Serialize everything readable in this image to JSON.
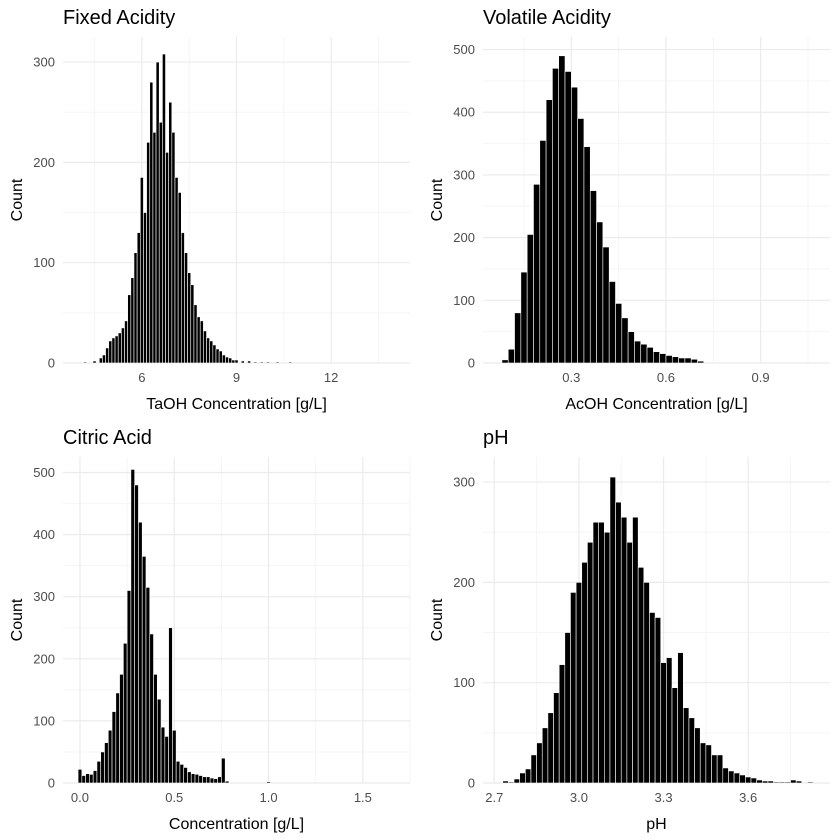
{
  "colors": {
    "bar_fill": "#000000",
    "bar_edge": "#ffffff",
    "grid_major": "#ebebeb",
    "grid_minor": "#f5f5f5",
    "tick_text": "#4d4d4d"
  },
  "chart_data": [
    {
      "type": "bar",
      "title": "Fixed Acidity",
      "xlabel": "TaOH Concentration [g/L]",
      "ylabel": "Count",
      "xlim": [
        3.5,
        14.5
      ],
      "ylim": [
        0,
        325
      ],
      "xticks": [
        6,
        9,
        12
      ],
      "yticks": [
        0,
        100,
        200,
        300
      ],
      "grid": true,
      "bin_width": 0.1,
      "x": [
        4.2,
        4.5,
        4.7,
        4.8,
        4.9,
        5.0,
        5.1,
        5.2,
        5.3,
        5.4,
        5.5,
        5.6,
        5.7,
        5.8,
        5.9,
        6.0,
        6.1,
        6.2,
        6.3,
        6.4,
        6.5,
        6.6,
        6.7,
        6.8,
        6.9,
        7.0,
        7.1,
        7.2,
        7.3,
        7.4,
        7.5,
        7.6,
        7.7,
        7.8,
        7.9,
        8.0,
        8.1,
        8.2,
        8.3,
        8.4,
        8.5,
        8.6,
        8.7,
        8.8,
        8.9,
        9.0,
        9.2,
        9.4,
        9.6,
        9.8,
        10.0,
        10.3,
        10.7
      ],
      "y": [
        1,
        2,
        5,
        8,
        15,
        22,
        25,
        27,
        30,
        35,
        42,
        68,
        85,
        110,
        130,
        185,
        150,
        220,
        280,
        230,
        300,
        240,
        308,
        210,
        260,
        230,
        185,
        170,
        130,
        110,
        90,
        78,
        58,
        46,
        42,
        32,
        25,
        22,
        18,
        14,
        12,
        8,
        6,
        5,
        3,
        3,
        2,
        2,
        1,
        1,
        1,
        1,
        1
      ]
    },
    {
      "type": "bar",
      "title": "Volatile Acidity",
      "xlabel": "AcOH Concentration [g/L]",
      "ylabel": "Count",
      "xlim": [
        0.02,
        1.12
      ],
      "ylim": [
        0,
        520
      ],
      "xticks": [
        0.3,
        0.6,
        0.9
      ],
      "yticks": [
        0,
        100,
        200,
        300,
        400,
        500
      ],
      "grid": true,
      "bin_width": 0.02,
      "x": [
        0.09,
        0.11,
        0.13,
        0.15,
        0.17,
        0.19,
        0.21,
        0.23,
        0.25,
        0.27,
        0.29,
        0.31,
        0.33,
        0.35,
        0.37,
        0.39,
        0.41,
        0.43,
        0.45,
        0.47,
        0.49,
        0.51,
        0.53,
        0.55,
        0.57,
        0.59,
        0.61,
        0.63,
        0.65,
        0.67,
        0.69,
        0.71
      ],
      "y": [
        5,
        22,
        80,
        145,
        205,
        285,
        355,
        420,
        470,
        490,
        465,
        440,
        390,
        345,
        275,
        225,
        185,
        130,
        95,
        72,
        50,
        35,
        30,
        25,
        18,
        15,
        12,
        10,
        8,
        8,
        6,
        3
      ]
    },
    {
      "type": "bar",
      "title": "Citric Acid",
      "xlabel": "Concentration [g/L]",
      "ylabel": "Count",
      "xlim": [
        -0.09,
        1.75
      ],
      "ylim": [
        0,
        525
      ],
      "xticks": [
        0.0,
        0.5,
        1.0,
        1.5
      ],
      "xticklabels": [
        "0.0",
        "0.5",
        "1.0",
        "1.5"
      ],
      "yticks": [
        0,
        100,
        200,
        300,
        400,
        500
      ],
      "grid": true,
      "bin_width": 0.02,
      "x": [
        0.0,
        0.02,
        0.04,
        0.06,
        0.08,
        0.1,
        0.12,
        0.14,
        0.16,
        0.18,
        0.2,
        0.22,
        0.24,
        0.26,
        0.28,
        0.3,
        0.32,
        0.34,
        0.36,
        0.38,
        0.4,
        0.42,
        0.44,
        0.46,
        0.48,
        0.5,
        0.52,
        0.54,
        0.56,
        0.58,
        0.6,
        0.62,
        0.64,
        0.66,
        0.68,
        0.7,
        0.72,
        0.74,
        0.76,
        0.78,
        1.0
      ],
      "y": [
        22,
        12,
        15,
        14,
        20,
        35,
        50,
        65,
        85,
        115,
        145,
        175,
        225,
        310,
        505,
        480,
        420,
        365,
        315,
        240,
        175,
        135,
        90,
        75,
        250,
        85,
        35,
        30,
        25,
        18,
        15,
        14,
        12,
        10,
        10,
        8,
        7,
        10,
        40,
        3,
        2
      ]
    },
    {
      "type": "bar",
      "title": "pH",
      "xlabel": "pH",
      "ylabel": "Count",
      "xlim": [
        2.66,
        3.89
      ],
      "ylim": [
        0,
        325
      ],
      "xticks": [
        2.7,
        3.0,
        3.3,
        3.6
      ],
      "xticklabels": [
        "2.7",
        "3.0",
        "3.3",
        "3.6"
      ],
      "yticks": [
        0,
        100,
        200,
        300
      ],
      "grid": true,
      "bin_width": 0.02,
      "x": [
        2.74,
        2.76,
        2.78,
        2.8,
        2.82,
        2.84,
        2.86,
        2.88,
        2.9,
        2.92,
        2.94,
        2.96,
        2.98,
        3.0,
        3.02,
        3.04,
        3.06,
        3.08,
        3.1,
        3.12,
        3.14,
        3.16,
        3.18,
        3.2,
        3.22,
        3.24,
        3.26,
        3.28,
        3.3,
        3.32,
        3.34,
        3.36,
        3.38,
        3.4,
        3.42,
        3.44,
        3.46,
        3.48,
        3.5,
        3.52,
        3.54,
        3.56,
        3.58,
        3.6,
        3.62,
        3.64,
        3.66,
        3.68,
        3.7,
        3.72,
        3.74,
        3.76,
        3.78,
        3.82
      ],
      "y": [
        2,
        1,
        4,
        10,
        14,
        28,
        40,
        55,
        70,
        90,
        118,
        150,
        190,
        200,
        220,
        240,
        260,
        260,
        250,
        305,
        280,
        265,
        240,
        265,
        215,
        200,
        170,
        165,
        120,
        125,
        95,
        130,
        75,
        65,
        55,
        40,
        38,
        28,
        28,
        15,
        12,
        10,
        8,
        6,
        5,
        3,
        2,
        2,
        1,
        1,
        1,
        3,
        2,
        1
      ]
    }
  ]
}
